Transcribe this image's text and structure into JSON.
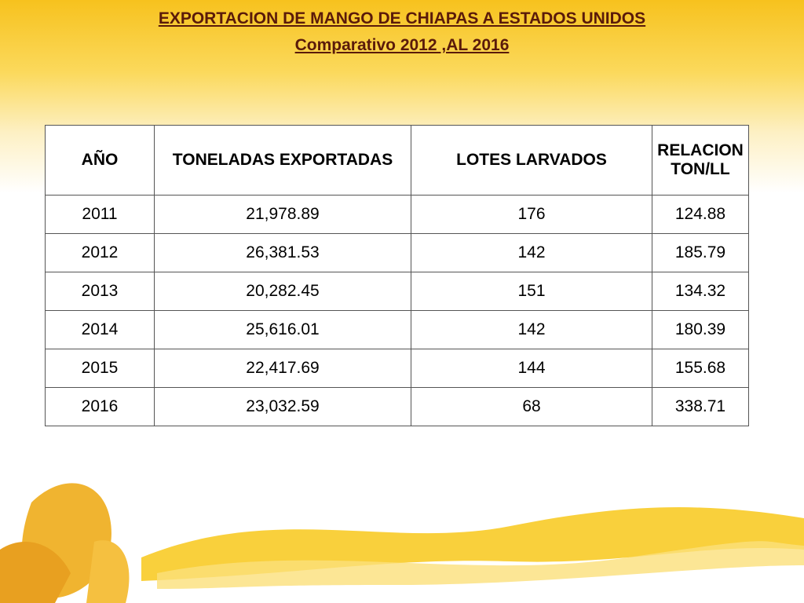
{
  "header": {
    "title": "EXPORTACION DE MANGO DE CHIAPAS  A ESTADOS UNIDOS",
    "subtitle": "Comparativo 2012 ,AL  2016"
  },
  "table": {
    "columns": [
      "AÑO",
      "TONELADAS EXPORTADAS",
      "LOTES LARVADOS",
      "RELACION TON/LL"
    ],
    "rows": [
      [
        "2011",
        "21,978.89",
        "176",
        "124.88"
      ],
      [
        "2012",
        "26,381.53",
        "142",
        "185.79"
      ],
      [
        "2013",
        "20,282.45",
        "151",
        "134.32"
      ],
      [
        "2014",
        "25,616.01",
        "142",
        "180.39"
      ],
      [
        "2015",
        "22,417.69",
        "144",
        "155.68"
      ],
      [
        "2016",
        "23,032.59",
        "68",
        "338.71"
      ]
    ]
  }
}
